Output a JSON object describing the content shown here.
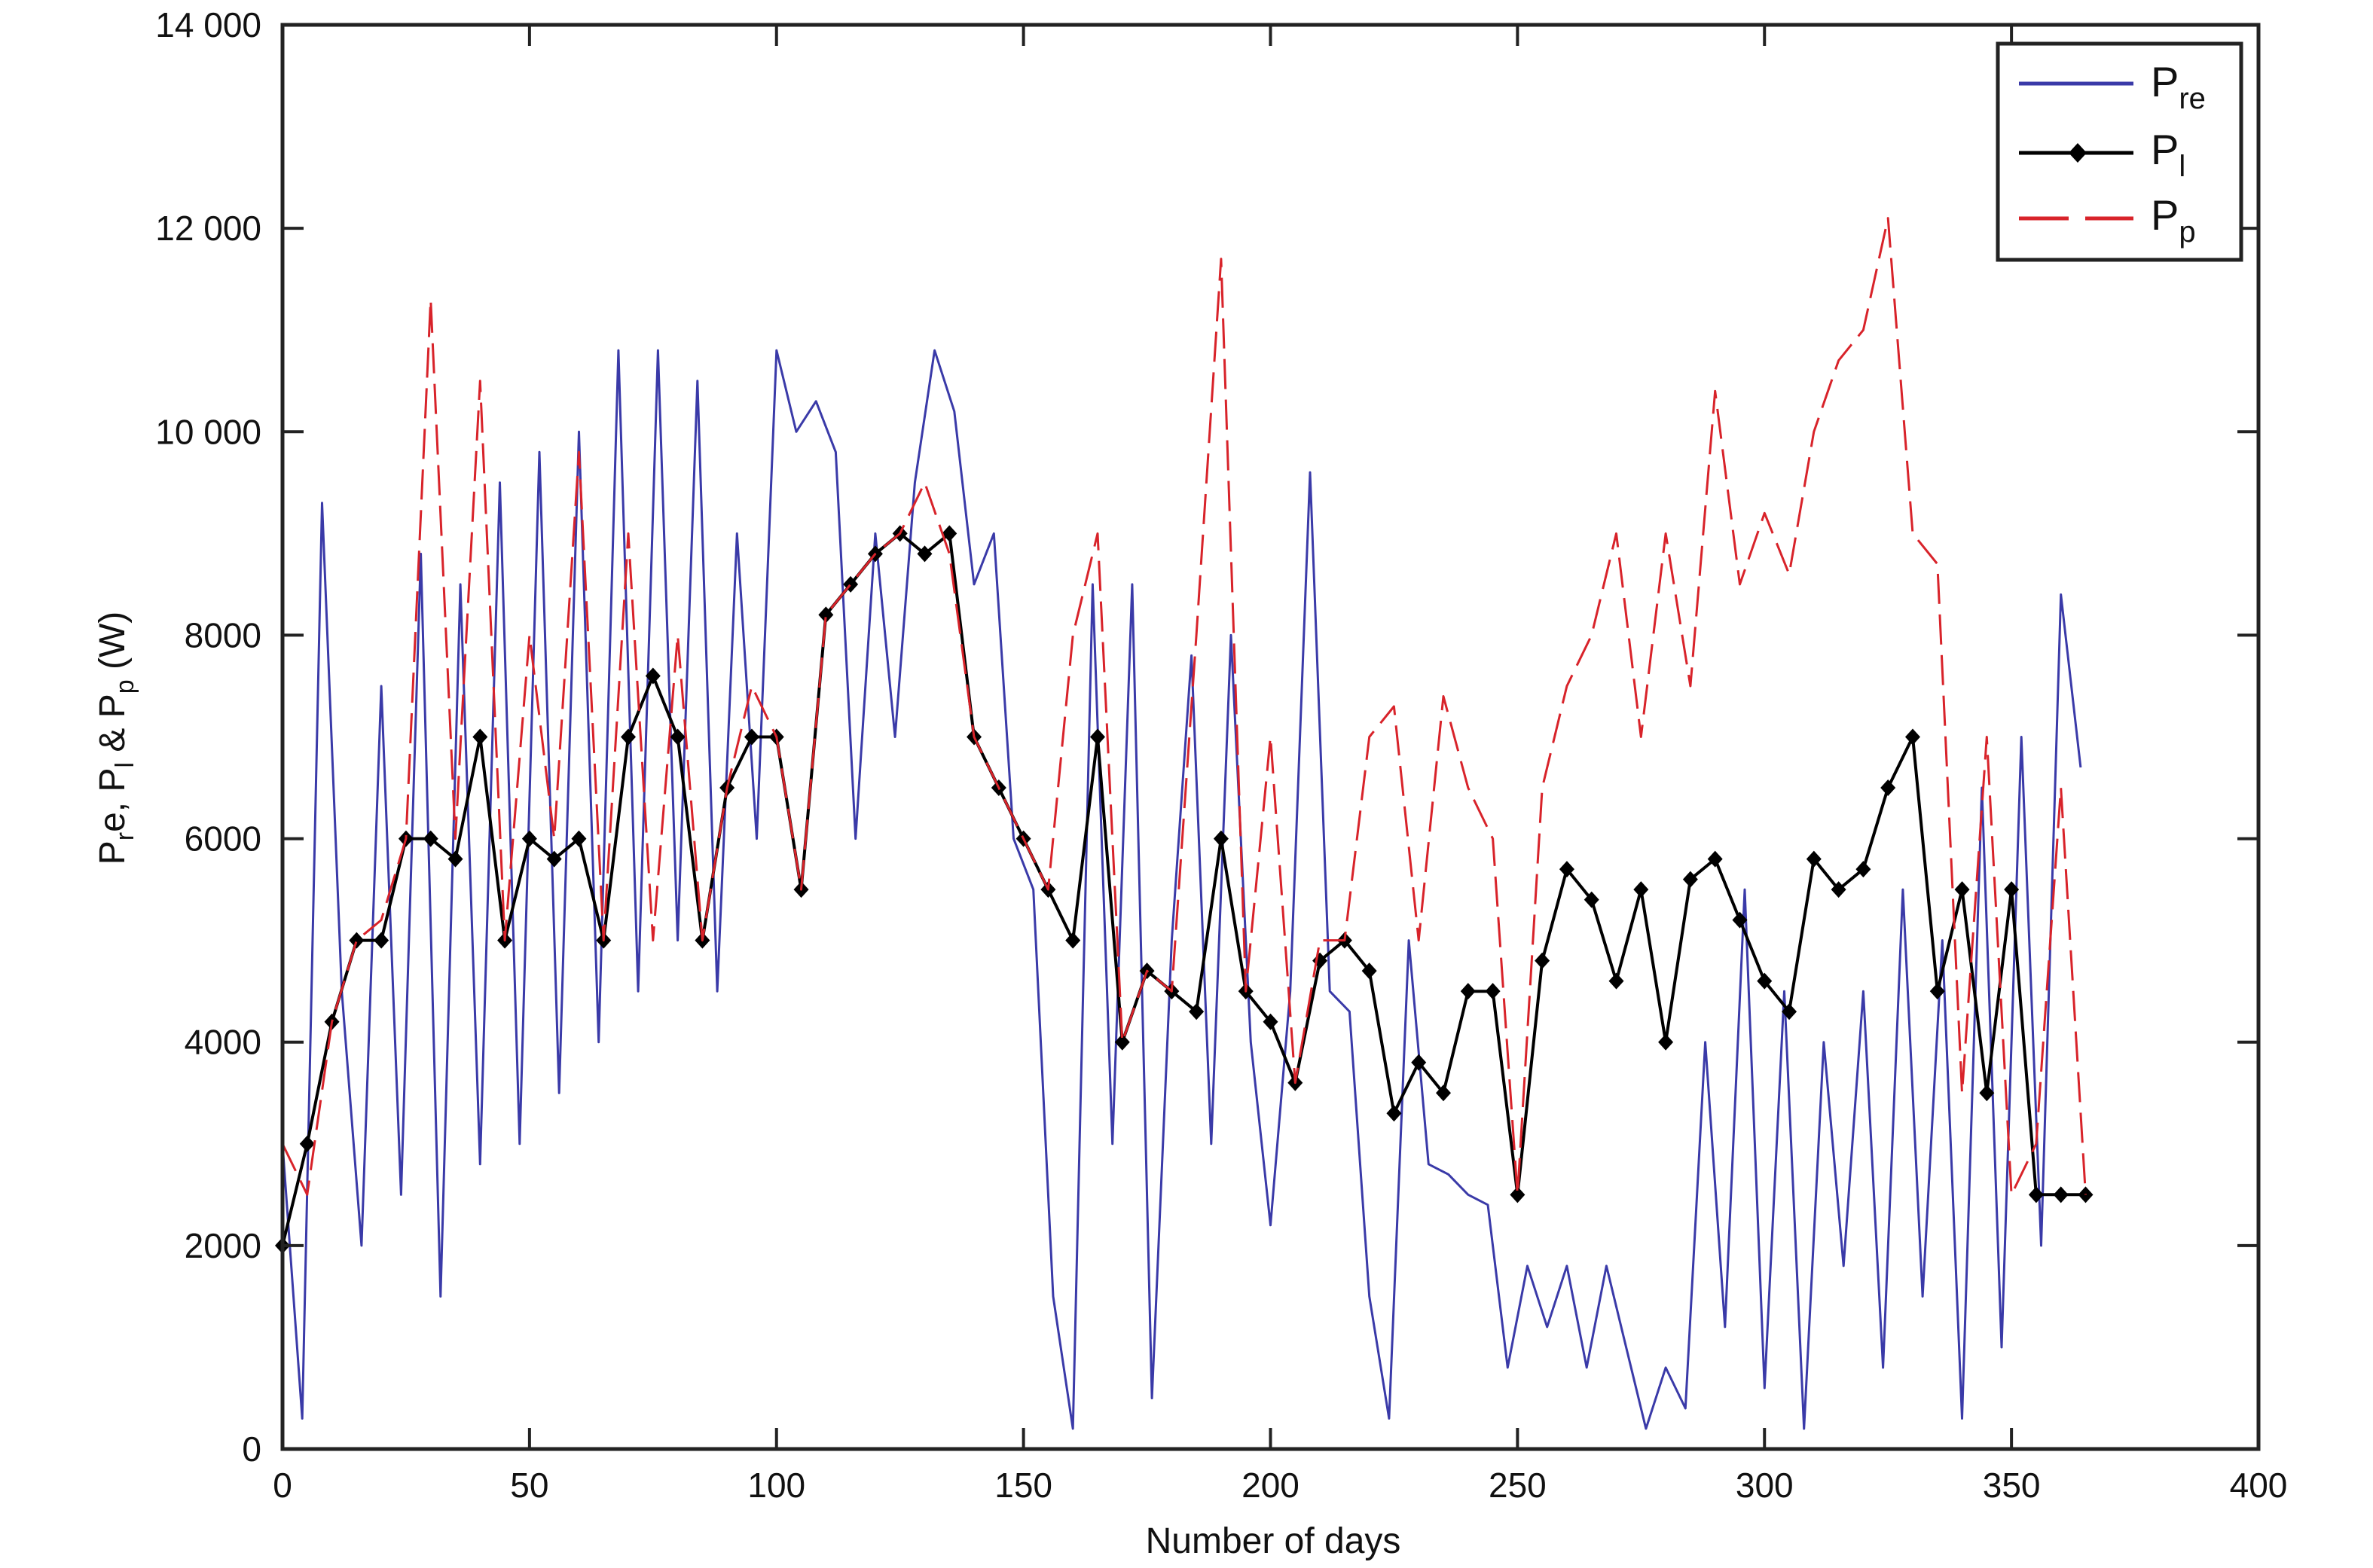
{
  "chart_data": {
    "type": "line",
    "title": "",
    "xlabel": "Number of days",
    "ylabel": "Pre, Pl & Pp (W)",
    "ylabel_parts": {
      "p1": "P",
      "s1": "r",
      "t1": "e, P",
      "s2": "l",
      "t2": " & P",
      "s3": "p",
      "t3": " (W)"
    },
    "xlim": [
      0,
      400
    ],
    "ylim": [
      0,
      14000
    ],
    "xticks": [
      0,
      50,
      100,
      150,
      200,
      250,
      300,
      350,
      400
    ],
    "xtick_labels": [
      "0",
      "50",
      "100",
      "150",
      "200",
      "250",
      "300",
      "350",
      "400"
    ],
    "yticks": [
      0,
      2000,
      4000,
      6000,
      8000,
      10000,
      12000,
      14000
    ],
    "ytick_labels": [
      "0",
      "2000",
      "4000",
      "6000",
      "8000",
      "10 000",
      "12 000",
      "14 000"
    ],
    "grid": false,
    "legend_position": "top-right",
    "series": [
      {
        "name": "Pre",
        "label_main": "P",
        "label_sub": "re",
        "color": "#3a3aa8",
        "style": "solid",
        "marker": "none",
        "x": [
          0,
          4,
          8,
          12,
          16,
          20,
          24,
          28,
          32,
          36,
          40,
          44,
          48,
          52,
          56,
          60,
          64,
          68,
          72,
          76,
          80,
          84,
          88,
          92,
          96,
          100,
          104,
          108,
          112,
          116,
          120,
          124,
          128,
          132,
          136,
          140,
          144,
          148,
          152,
          156,
          160,
          164,
          168,
          172,
          176,
          180,
          184,
          188,
          192,
          196,
          200,
          204,
          208,
          212,
          216,
          220,
          224,
          228,
          232,
          236,
          240,
          244,
          248,
          252,
          256,
          260,
          264,
          268,
          272,
          276,
          280,
          284,
          288,
          292,
          296,
          300,
          304,
          308,
          312,
          316,
          320,
          324,
          328,
          332,
          336,
          340,
          344,
          348,
          352,
          356,
          360,
          364
        ],
        "y": [
          3000,
          300,
          9300,
          4500,
          2000,
          7500,
          2500,
          8800,
          1500,
          8500,
          2800,
          9500,
          3000,
          9800,
          3500,
          10000,
          4000,
          10800,
          4500,
          10800,
          5000,
          10500,
          4500,
          9000,
          6000,
          10800,
          10000,
          10300,
          9800,
          6000,
          9000,
          7000,
          9500,
          10800,
          10200,
          8500,
          9000,
          6000,
          5500,
          1500,
          200,
          8500,
          3000,
          8500,
          500,
          5000,
          7800,
          3000,
          8000,
          4000,
          2200,
          4500,
          9600,
          4500,
          4300,
          1500,
          300,
          5000,
          2800,
          2700,
          2500,
          2400,
          800,
          1800,
          1200,
          1800,
          800,
          1800,
          1000,
          200,
          800,
          400,
          4000,
          1200,
          5500,
          600,
          4500,
          200,
          4000,
          1800,
          4500,
          800,
          5500,
          1500,
          5000,
          300,
          6500,
          1000,
          7000,
          2000,
          8400,
          6700
        ]
      },
      {
        "name": "Pl",
        "label_main": "P",
        "label_sub": "l",
        "color": "#000000",
        "style": "solid",
        "marker": "diamond",
        "x": [
          0,
          5,
          10,
          15,
          20,
          25,
          30,
          35,
          40,
          45,
          50,
          55,
          60,
          65,
          70,
          75,
          80,
          85,
          90,
          95,
          100,
          105,
          110,
          115,
          120,
          125,
          130,
          135,
          140,
          145,
          150,
          155,
          160,
          165,
          170,
          175,
          180,
          185,
          190,
          195,
          200,
          205,
          210,
          215,
          220,
          225,
          230,
          235,
          240,
          245,
          250,
          255,
          260,
          265,
          270,
          275,
          280,
          285,
          290,
          295,
          300,
          305,
          310,
          315,
          320,
          325,
          330,
          335,
          340,
          345,
          350,
          355,
          360,
          365
        ],
        "y": [
          2000,
          3000,
          4200,
          5000,
          5000,
          6000,
          6000,
          5800,
          7000,
          5000,
          6000,
          5800,
          6000,
          5000,
          7000,
          7600,
          7000,
          5000,
          6500,
          7000,
          7000,
          5500,
          8200,
          8500,
          8800,
          9000,
          8800,
          9000,
          7000,
          6500,
          6000,
          5500,
          5000,
          7000,
          4000,
          4700,
          4500,
          4300,
          6000,
          4500,
          4200,
          3600,
          4800,
          5000,
          4700,
          3300,
          3800,
          3500,
          4500,
          4500,
          2500,
          4800,
          5700,
          5400,
          4600,
          5500,
          4000,
          5600,
          5800,
          5200,
          4600,
          4300,
          5800,
          5500,
          5700,
          6500,
          7000,
          4500,
          5500,
          3500,
          5500,
          2500,
          2500,
          2500
        ]
      },
      {
        "name": "Pp",
        "label_main": "P",
        "label_sub": "p",
        "color": "#d8232a",
        "style": "dashed",
        "marker": "none",
        "x": [
          0,
          5,
          10,
          15,
          20,
          25,
          30,
          35,
          40,
          45,
          50,
          55,
          60,
          65,
          70,
          75,
          80,
          85,
          90,
          95,
          100,
          105,
          110,
          115,
          120,
          125,
          130,
          135,
          140,
          145,
          150,
          155,
          160,
          165,
          170,
          175,
          180,
          185,
          190,
          195,
          200,
          205,
          210,
          215,
          220,
          225,
          230,
          235,
          240,
          245,
          250,
          255,
          260,
          265,
          270,
          275,
          280,
          285,
          290,
          295,
          300,
          305,
          310,
          315,
          320,
          325,
          330,
          335,
          340,
          345,
          350,
          355,
          360,
          365
        ],
        "y": [
          3000,
          2500,
          4200,
          5000,
          5200,
          6000,
          11300,
          6000,
          10500,
          5000,
          8000,
          6000,
          9800,
          5000,
          9000,
          5000,
          8000,
          5000,
          6500,
          7500,
          7000,
          5500,
          8200,
          8500,
          8800,
          9000,
          9500,
          8800,
          7000,
          6500,
          6000,
          5500,
          8000,
          9000,
          4000,
          4700,
          4500,
          8000,
          11700,
          4500,
          7000,
          3600,
          5000,
          5000,
          7000,
          7300,
          5000,
          7400,
          6500,
          6000,
          2500,
          6500,
          7500,
          8000,
          9000,
          7000,
          9000,
          7500,
          10400,
          8500,
          9200,
          8600,
          10000,
          10700,
          11000,
          12100,
          9000,
          8700,
          3500,
          7000,
          2500,
          3000,
          6500,
          2500
        ]
      }
    ]
  }
}
